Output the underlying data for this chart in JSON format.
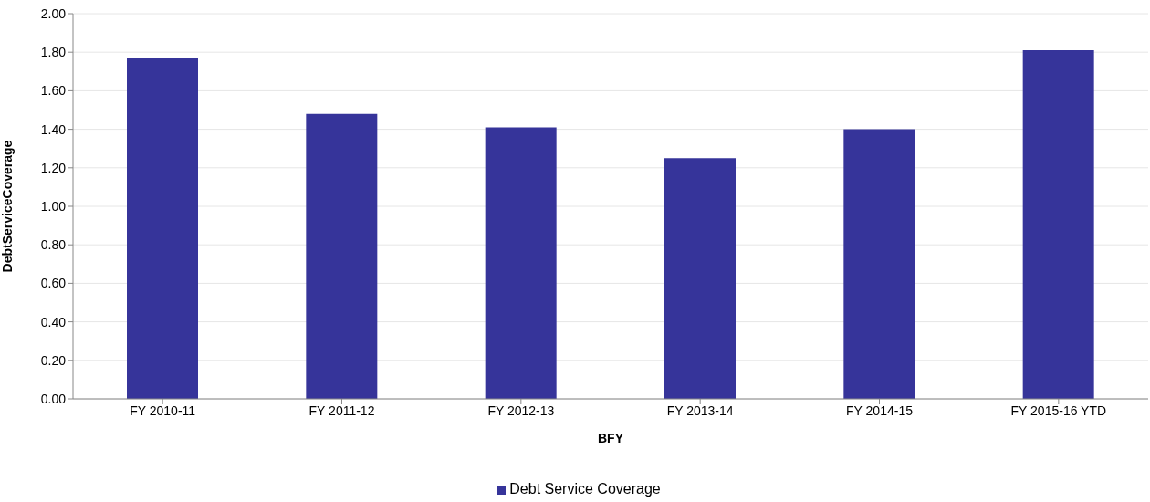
{
  "chart_data": {
    "type": "bar",
    "xlabel": "BFY",
    "ylabel": "DebtServiceCoverage",
    "categories": [
      "FY 2010-11",
      "FY 2011-12",
      "FY 2012-13",
      "FY 2013-14",
      "FY 2014-15",
      "FY 2015-16 YTD"
    ],
    "series": [
      {
        "name": "Debt Service Coverage",
        "color": "#36349a",
        "values": [
          1.77,
          1.48,
          1.41,
          1.25,
          1.4,
          1.81
        ]
      }
    ],
    "ylim": [
      0,
      2
    ],
    "yticks": [
      {
        "value": 0,
        "label": "0.00"
      },
      {
        "value": 0.2,
        "label": "0.20"
      },
      {
        "value": 0.4,
        "label": "0.40"
      },
      {
        "value": 0.6,
        "label": "0.60"
      },
      {
        "value": 0.8,
        "label": "0.80"
      },
      {
        "value": 1,
        "label": "1.00"
      },
      {
        "value": 1.2,
        "label": "1.20"
      },
      {
        "value": 1.4,
        "label": "1.40"
      },
      {
        "value": 1.6,
        "label": "1.60"
      },
      {
        "value": 1.8,
        "label": "1.80"
      },
      {
        "value": 2,
        "label": "2.00"
      }
    ],
    "grid": "y",
    "legend": "bottom"
  }
}
